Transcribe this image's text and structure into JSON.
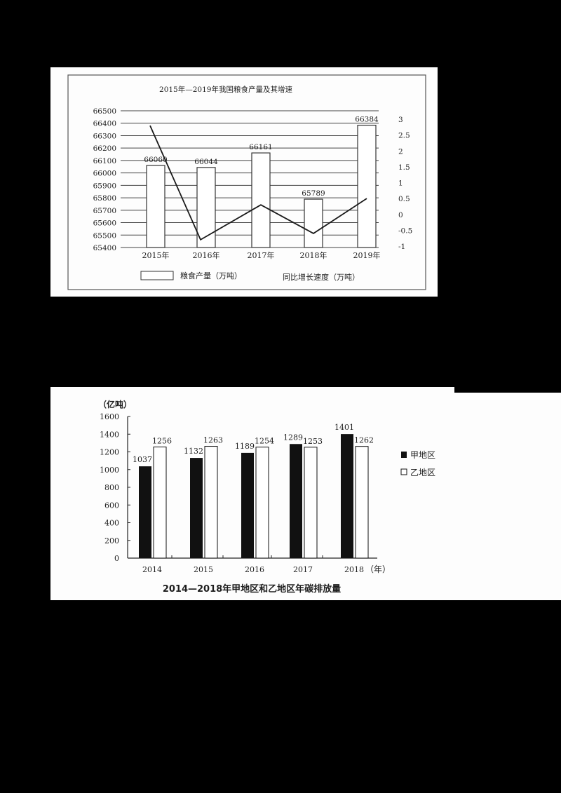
{
  "chart_data": [
    {
      "type": "bar+line",
      "title": "2015年—2019年我国粮食产量及其增速",
      "categories": [
        "2015年",
        "2016年",
        "2017年",
        "2018年",
        "2019年"
      ],
      "series": [
        {
          "name": "粮食产量（万吨）",
          "type": "bar",
          "axis": "left",
          "values": [
            66060,
            66044,
            66161,
            65789,
            66384
          ]
        },
        {
          "name": "同比增长速度（万吨）",
          "type": "line",
          "axis": "right",
          "values": [
            2.8,
            -0.8,
            0.3,
            -0.6,
            0.5
          ]
        }
      ],
      "y_left": {
        "ticks": [
          66500,
          66400,
          66300,
          66200,
          66100,
          66000,
          65900,
          65800,
          65700,
          65600,
          65500,
          65400
        ],
        "ylim": [
          65400,
          66500
        ]
      },
      "y_right": {
        "ticks": [
          "3",
          "2.5",
          "2",
          "1.5",
          "1",
          "0.5",
          "0",
          "-0.5",
          "-1"
        ],
        "ylim": [
          -1,
          3
        ]
      },
      "grid": true,
      "legend_position": "bottom"
    },
    {
      "type": "bar",
      "title": "2014—2018年甲地区和乙地区年碳排放量",
      "ylabel": "（亿吨）",
      "xlabel": "（年）",
      "categories": [
        "2014",
        "2015",
        "2016",
        "2017",
        "2018"
      ],
      "series": [
        {
          "name": "甲地区",
          "color": "#111111",
          "values": [
            1037,
            1132,
            1189,
            1289,
            1401
          ]
        },
        {
          "name": "乙地区",
          "color": "#ffffff",
          "values": [
            1256,
            1263,
            1254,
            1253,
            1262
          ]
        }
      ],
      "y_ticks": [
        1600,
        1400,
        1200,
        1000,
        800,
        600,
        400,
        200,
        0
      ],
      "ylim": [
        0,
        1600
      ],
      "grid": false,
      "legend_position": "right"
    }
  ],
  "chart1": {
    "title": "2015年—2019年我国粮食产量及其增速",
    "legend_bar": "粮食产量（万吨）",
    "legend_line": "同比增长速度（万吨）"
  },
  "chart2": {
    "title": "2014—2018年甲地区和乙地区年碳排放量",
    "unit": "（亿吨）",
    "x_unit": "（年）",
    "legend_a": "甲地区",
    "legend_b": "乙地区"
  }
}
